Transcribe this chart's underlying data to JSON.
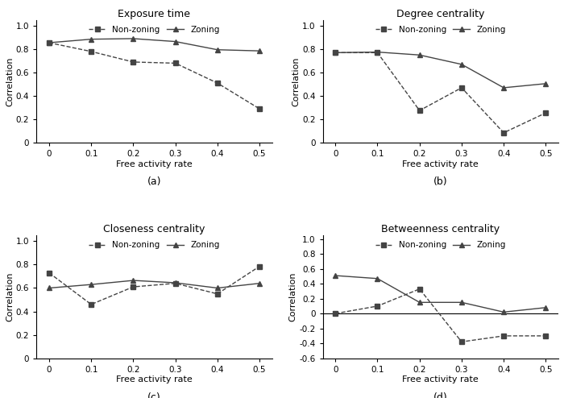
{
  "x": [
    0,
    0.1,
    0.2,
    0.3,
    0.4,
    0.5
  ],
  "plots": [
    {
      "title": "Exposure time",
      "label": "(a)",
      "ylim": [
        0,
        1.05
      ],
      "yticks": [
        0,
        0.2,
        0.4,
        0.6,
        0.8,
        1.0
      ],
      "non_zoning": [
        0.855,
        0.78,
        0.69,
        0.68,
        0.51,
        0.29
      ],
      "zoning": [
        0.855,
        0.885,
        0.89,
        0.865,
        0.795,
        0.785
      ]
    },
    {
      "title": "Degree centrality",
      "label": "(b)",
      "ylim": [
        0,
        1.05
      ],
      "yticks": [
        0,
        0.2,
        0.4,
        0.6,
        0.8,
        1.0
      ],
      "non_zoning": [
        0.77,
        0.77,
        0.275,
        0.47,
        0.085,
        0.255
      ],
      "zoning": [
        0.77,
        0.775,
        0.75,
        0.67,
        0.47,
        0.505
      ]
    },
    {
      "title": "Closeness centrality",
      "label": "(c)",
      "ylim": [
        0,
        1.05
      ],
      "yticks": [
        0,
        0.2,
        0.4,
        0.6,
        0.8,
        1.0
      ],
      "non_zoning": [
        0.73,
        0.46,
        0.61,
        0.64,
        0.55,
        0.785
      ],
      "zoning": [
        0.6,
        0.63,
        0.665,
        0.645,
        0.6,
        0.64
      ]
    },
    {
      "title": "Betweenness centrality",
      "label": "(d)",
      "ylim": [
        -0.6,
        1.05
      ],
      "yticks": [
        -0.6,
        -0.4,
        -0.2,
        0,
        0.2,
        0.4,
        0.6,
        0.8,
        1.0
      ],
      "non_zoning": [
        0.0,
        0.1,
        0.33,
        -0.38,
        -0.3,
        -0.3
      ],
      "zoning": [
        0.51,
        0.47,
        0.15,
        0.15,
        0.02,
        0.08
      ]
    }
  ],
  "xlabel": "Free activity rate",
  "ylabel": "Correlation",
  "line_color": "#444444",
  "non_zoning_label": "Non-zoning",
  "zoning_label": "Zoning"
}
